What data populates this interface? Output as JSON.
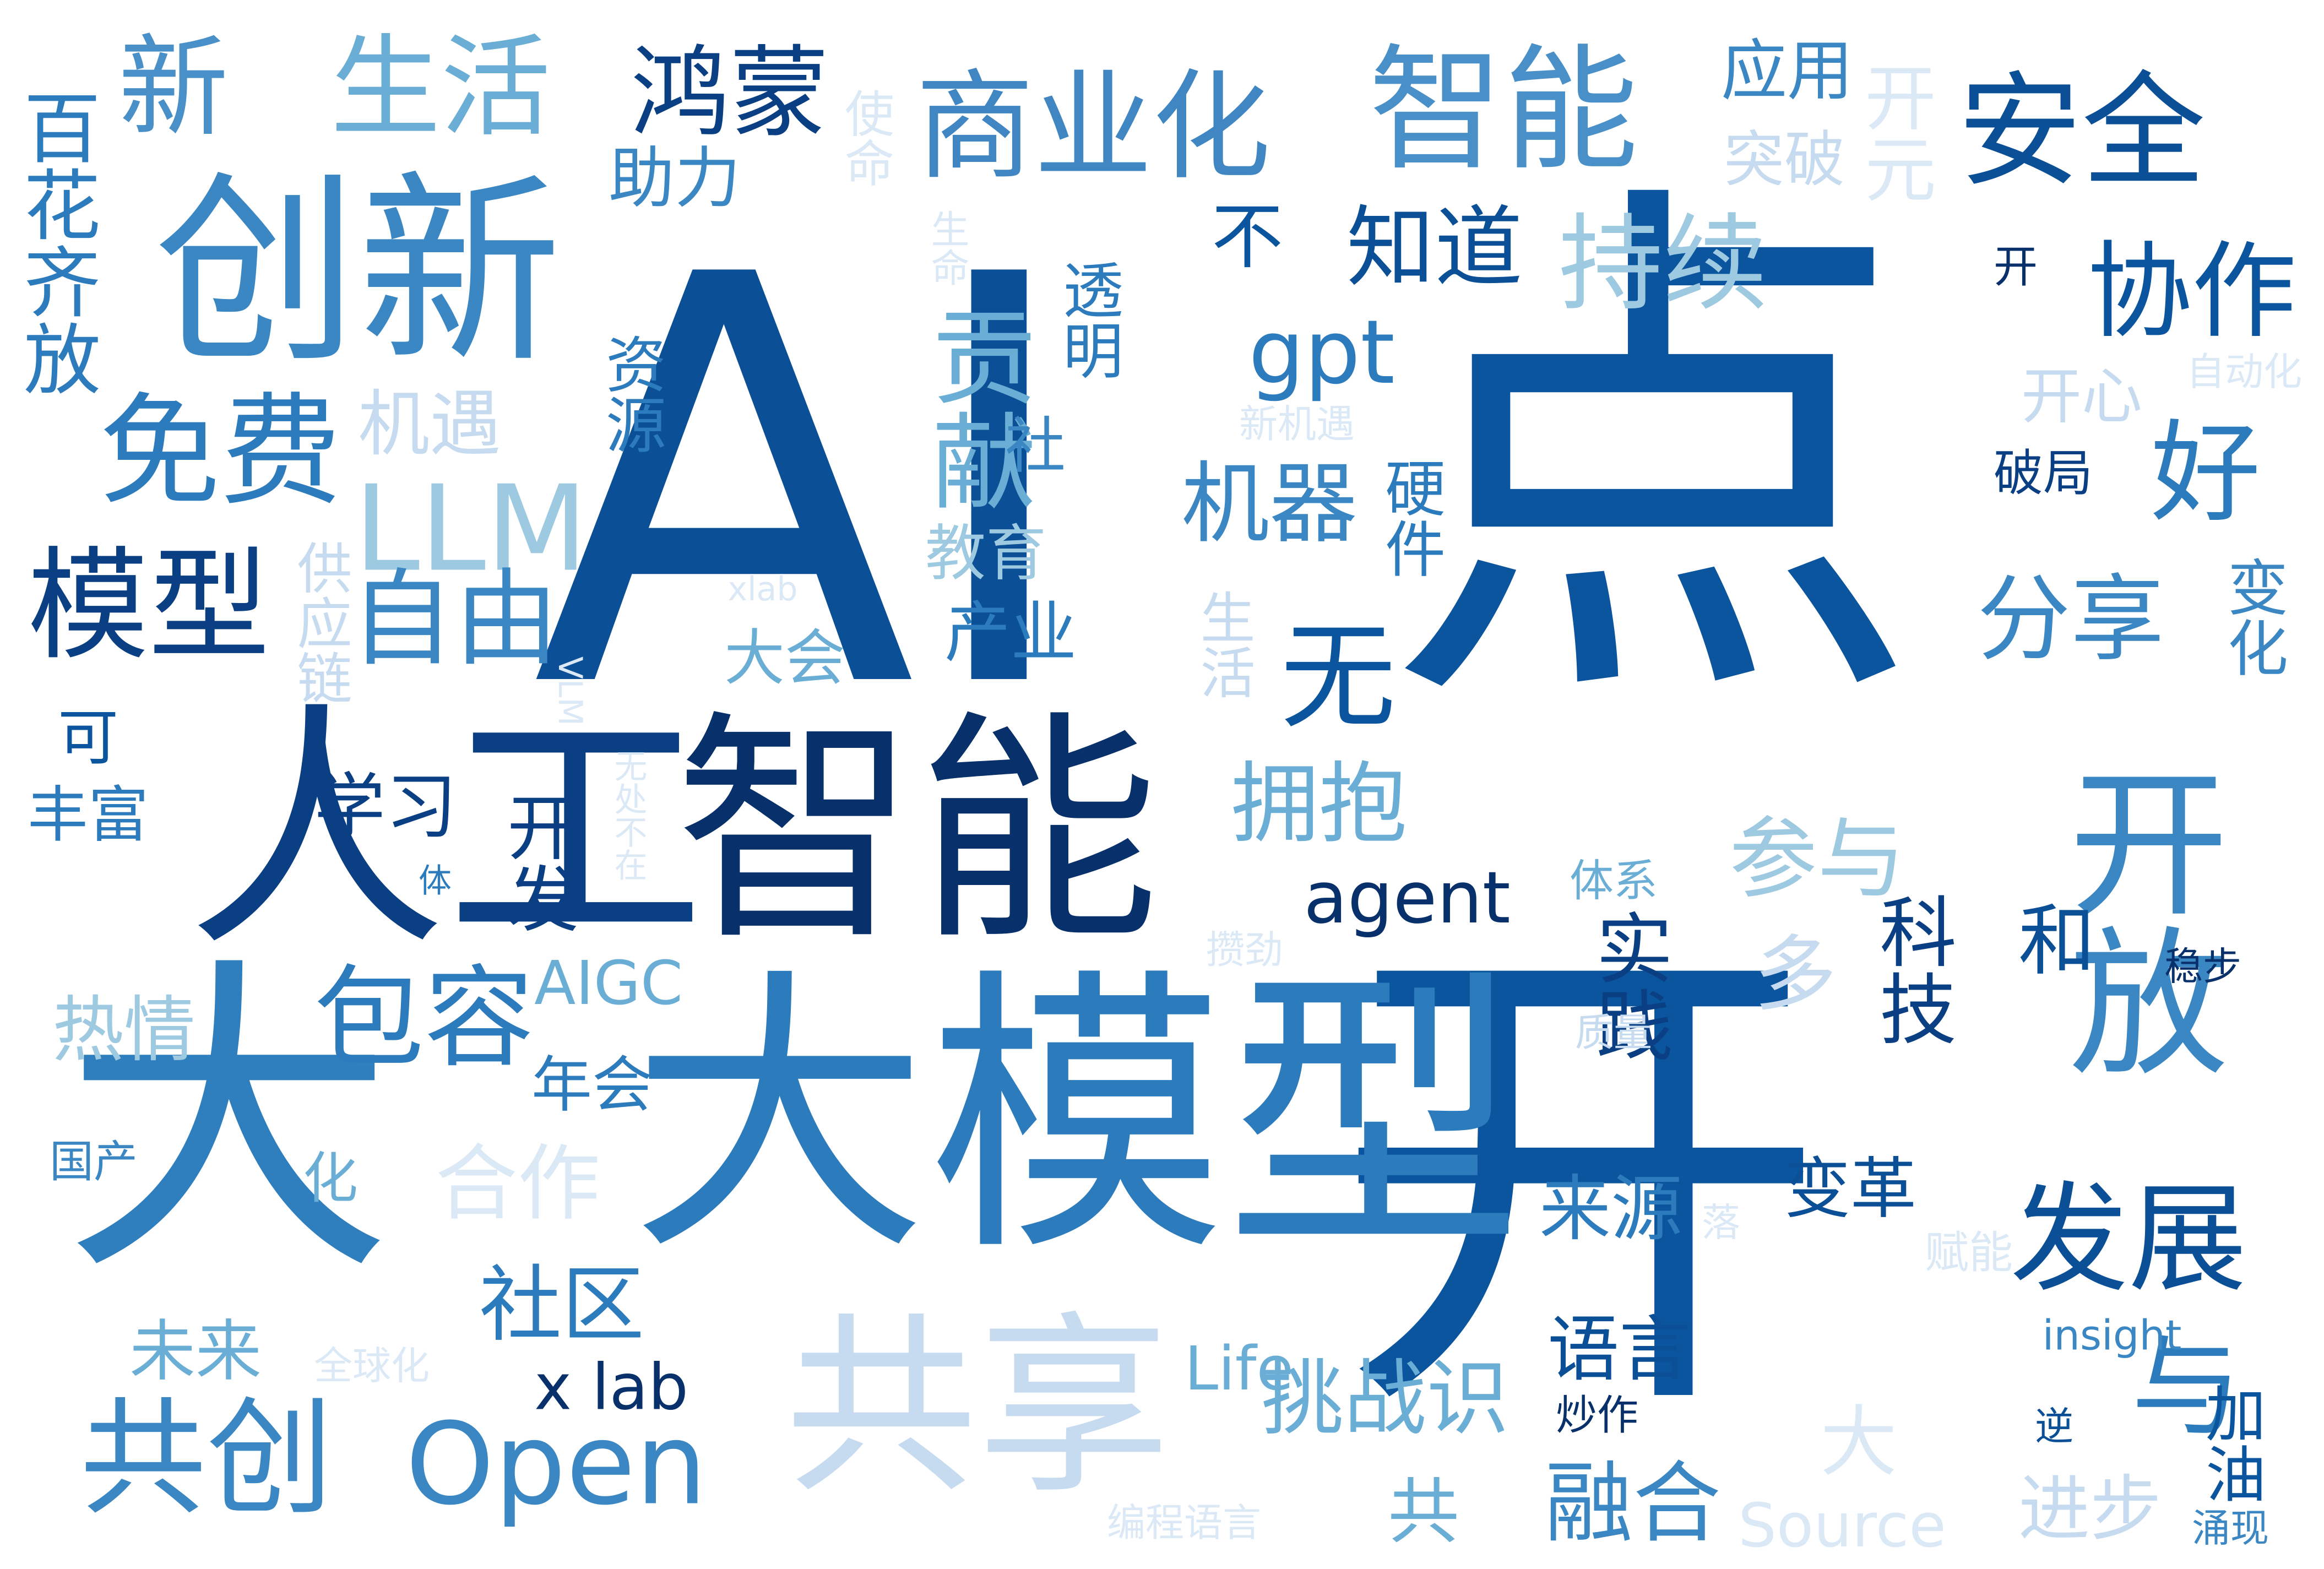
{
  "words": [
    {
      "id": "ai",
      "text": "AI",
      "color": "#0b4f96",
      "vertical": false
    },
    {
      "id": "dian",
      "text": "点",
      "color": "#0b559f",
      "vertical": false
    },
    {
      "id": "kai",
      "text": "开",
      "color": "#0b559f",
      "vertical": false
    },
    {
      "id": "damoxing",
      "text": "大模型",
      "color": "#2c7bbd",
      "vertical": false
    },
    {
      "id": "da",
      "text": "大",
      "color": "#2f7fbf",
      "vertical": false
    },
    {
      "id": "rengong",
      "text": "人工",
      "color": "#0a3f84",
      "vertical": false
    },
    {
      "id": "zhineng",
      "text": "智能",
      "color": "#08306b",
      "vertical": false
    },
    {
      "id": "gongxiang",
      "text": "共享",
      "color": "#c6dbef",
      "vertical": false
    },
    {
      "id": "chuangxin",
      "text": "创新",
      "color": "#3a87c3",
      "vertical": false
    },
    {
      "id": "kaifang",
      "text": "开放",
      "color": "#3a87c3",
      "vertical": true
    },
    {
      "id": "zhineng2",
      "text": "智能",
      "color": "#4a90c8",
      "vertical": false
    },
    {
      "id": "shangyehua",
      "text": "商业化",
      "color": "#3f86c2",
      "vertical": false
    },
    {
      "id": "anquan",
      "text": "安全",
      "color": "#0b4f96",
      "vertical": false
    },
    {
      "id": "xin",
      "text": "新",
      "color": "#4a90c8",
      "vertical": false
    },
    {
      "id": "shenghuo",
      "text": "生活",
      "color": "#6aaed6",
      "vertical": false
    },
    {
      "id": "hongmeng",
      "text": "鸿蒙",
      "color": "#0a3f84",
      "vertical": false
    },
    {
      "id": "mianfei",
      "text": "免费",
      "color": "#2c7bbd",
      "vertical": false
    },
    {
      "id": "moxing",
      "text": "模型",
      "color": "#0a3f84",
      "vertical": false
    },
    {
      "id": "llm",
      "text": "LLM",
      "color": "#9ecae1",
      "vertical": false
    },
    {
      "id": "ziyou",
      "text": "自由",
      "color": "#3a87c3",
      "vertical": false
    },
    {
      "id": "gongchuang",
      "text": "共创",
      "color": "#3a87c3",
      "vertical": false
    },
    {
      "id": "open",
      "text": "Open",
      "color": "#3a87c3",
      "vertical": false
    },
    {
      "id": "fazhan",
      "text": "发展",
      "color": "#0b4f96",
      "vertical": false
    },
    {
      "id": "yu",
      "text": "与",
      "color": "#2c7bbd",
      "vertical": false
    },
    {
      "id": "baohan",
      "text": "包容",
      "color": "#2c7bbd",
      "vertical": false
    },
    {
      "id": "wu",
      "text": "无",
      "color": "#0b559f",
      "vertical": false
    },
    {
      "id": "chixu",
      "text": "持续",
      "color": "#9ecae1",
      "vertical": false
    },
    {
      "id": "xiezuo",
      "text": "协作",
      "color": "#0b559f",
      "vertical": false
    },
    {
      "id": "hao",
      "text": "好",
      "color": "#2c7bbd",
      "vertical": false
    },
    {
      "id": "gongxian",
      "text": "贡献",
      "color": "#6aaed6",
      "vertical": true
    },
    {
      "id": "gpt",
      "text": "gpt",
      "color": "#2c7bbd",
      "vertical": false
    },
    {
      "id": "jiqi",
      "text": "机器",
      "color": "#3a87c3",
      "vertical": false
    },
    {
      "id": "zhidao",
      "text": "知道",
      "color": "#0b4f96",
      "vertical": false
    },
    {
      "id": "bu",
      "text": "不",
      "color": "#0b559f",
      "vertical": false
    },
    {
      "id": "agent",
      "text": "agent",
      "color": "#08306b",
      "vertical": false
    },
    {
      "id": "yongbao",
      "text": "拥抱",
      "color": "#6aaed6",
      "vertical": false
    },
    {
      "id": "canyu",
      "text": "参与",
      "color": "#9ecae1",
      "vertical": false
    },
    {
      "id": "fenxiang",
      "text": "分享",
      "color": "#3a87c3",
      "vertical": false
    },
    {
      "id": "he",
      "text": "和",
      "color": "#0b4f96",
      "vertical": false
    },
    {
      "id": "duo",
      "text": "多",
      "color": "#c6dbef",
      "vertical": false
    },
    {
      "id": "keji",
      "text": "科技",
      "color": "#0a3f84",
      "vertical": true
    },
    {
      "id": "shijian",
      "text": "实践",
      "color": "#0a3f84",
      "vertical": true
    },
    {
      "id": "baihuaqifang",
      "text": "百花齐放",
      "color": "#2c7bbd",
      "vertical": true
    },
    {
      "id": "xuexi",
      "text": "学习",
      "color": "#0a3f84",
      "vertical": false
    },
    {
      "id": "kaifa",
      "text": "开发",
      "color": "#0a3f84",
      "vertical": true
    },
    {
      "id": "aigc",
      "text": "AIGC",
      "color": "#6aaed6",
      "vertical": false
    },
    {
      "id": "nianhui",
      "text": "年会",
      "color": "#2c7bbd",
      "vertical": false
    },
    {
      "id": "reqing",
      "text": "热情",
      "color": "#9ecae1",
      "vertical": false
    },
    {
      "id": "hezuo",
      "text": "合作",
      "color": "#dbe9f6",
      "vertical": false
    },
    {
      "id": "shequ",
      "text": "社区",
      "color": "#2c7bbd",
      "vertical": false
    },
    {
      "id": "weilai",
      "text": "未来",
      "color": "#6aaed6",
      "vertical": false
    },
    {
      "id": "xlab",
      "text": "x lab",
      "color": "#08306b",
      "vertical": false
    },
    {
      "id": "life",
      "text": "Life",
      "color": "#6aaed6",
      "vertical": false
    },
    {
      "id": "tiaozhanshi",
      "text": "挑战识",
      "color": "#6aaed6",
      "vertical": false
    },
    {
      "id": "yuyan",
      "text": "语言",
      "color": "#0b4f96",
      "vertical": false
    },
    {
      "id": "laiyuan",
      "text": "来源",
      "color": "#2c7bbd",
      "vertical": false
    },
    {
      "id": "biange",
      "text": "变革",
      "color": "#0b4f96",
      "vertical": false
    },
    {
      "id": "ronghe",
      "text": "融合",
      "color": "#3a87c3",
      "vertical": false
    },
    {
      "id": "gong",
      "text": "共",
      "color": "#6aaed6",
      "vertical": false
    },
    {
      "id": "source",
      "text": "Source",
      "color": "#dbe9f6",
      "vertical": false
    },
    {
      "id": "jinbu",
      "text": "进步",
      "color": "#c6dbef",
      "vertical": false
    },
    {
      "id": "dajiang",
      "text": "大",
      "color": "#dbe9f6",
      "vertical": false
    },
    {
      "id": "insight",
      "text": "insight",
      "color": "#3a87c3",
      "vertical": false
    },
    {
      "id": "jiayou",
      "text": "加油",
      "color": "#0b559f",
      "vertical": true
    },
    {
      "id": "yongxian",
      "text": "涌现",
      "color": "#3a87c3",
      "vertical": false
    },
    {
      "id": "chaozuo",
      "text": "炒作",
      "color": "#08306b",
      "vertical": false
    },
    {
      "id": "ni",
      "text": "逆",
      "color": "#0b4f96",
      "vertical": false
    },
    {
      "id": "fuzneng",
      "text": "赋能",
      "color": "#dbe9f6",
      "vertical": false
    },
    {
      "id": "wenbu",
      "text": "稳步",
      "color": "#08306b",
      "vertical": false
    },
    {
      "id": "zhiliang",
      "text": "质量",
      "color": "#c6dbef",
      "vertical": false
    },
    {
      "id": "tixi",
      "text": "体系",
      "color": "#6aaed6",
      "vertical": false
    },
    {
      "id": "zanjin",
      "text": "攒劲",
      "color": "#dbe9f6",
      "vertical": false
    },
    {
      "id": "bianhua",
      "text": "变化",
      "color": "#3a87c3",
      "vertical": true
    },
    {
      "id": "kaixin",
      "text": "开心",
      "color": "#c6dbef",
      "vertical": false
    },
    {
      "id": "zidonghua",
      "text": "自动化",
      "color": "#dbe9f6",
      "vertical": false
    },
    {
      "id": "pojv",
      "text": "破局",
      "color": "#0a3f84",
      "vertical": false
    },
    {
      "id": "kai2",
      "text": "开",
      "color": "#08306b",
      "vertical": false
    },
    {
      "id": "xinjiyu",
      "text": "新机遇",
      "color": "#dbe9f6",
      "vertical": false
    },
    {
      "id": "kaiyuan",
      "text": "开元",
      "color": "#dbe9f6",
      "vertical": true
    },
    {
      "id": "tupo",
      "text": "突破",
      "color": "#c6dbef",
      "vertical": false
    },
    {
      "id": "yingyong",
      "text": "应用",
      "color": "#3a87c3",
      "vertical": false
    },
    {
      "id": "shengming",
      "text": "生命",
      "color": "#dbe9f6",
      "vertical": true
    },
    {
      "id": "shiming",
      "text": "使命",
      "color": "#dbe9f6",
      "vertical": true
    },
    {
      "id": "zhuli",
      "text": "助力",
      "color": "#3a87c3",
      "vertical": false
    },
    {
      "id": "touming",
      "text": "透明",
      "color": "#2c7bbd",
      "vertical": true
    },
    {
      "id": "ziyuan",
      "text": "资源",
      "color": "#2c7bbd",
      "vertical": true
    },
    {
      "id": "jiyu",
      "text": "机遇",
      "color": "#c6dbef",
      "vertical": false
    },
    {
      "id": "she",
      "text": "社",
      "color": "#3a87c3",
      "vertical": false
    },
    {
      "id": "yingjian",
      "text": "硬件",
      "color": "#2c7bbd",
      "vertical": true
    },
    {
      "id": "jiaoyu",
      "text": "教育",
      "color": "#9ecae1",
      "vertical": false
    },
    {
      "id": "shenghuo2",
      "text": "生活",
      "color": "#c6dbef",
      "vertical": true
    },
    {
      "id": "chanye",
      "text": "产业",
      "color": "#2c7bbd",
      "vertical": false
    },
    {
      "id": "dahui",
      "text": "大会",
      "color": "#6aaed6",
      "vertical": false
    },
    {
      "id": "xlab2",
      "text": "xlab",
      "color": "#dbe9f6",
      "vertical": false
    },
    {
      "id": "gongyinglian",
      "text": "供应链",
      "color": "#c6dbef",
      "vertical": true
    },
    {
      "id": "vlm",
      "text": "VLM",
      "color": "#dbe9f6",
      "vertical": true
    },
    {
      "id": "wuchubuzai",
      "text": "无处不在",
      "color": "#dbe9f6",
      "vertical": true
    },
    {
      "id": "ke",
      "text": "可",
      "color": "#0b559f",
      "vertical": false
    },
    {
      "id": "fengfu",
      "text": "丰富",
      "color": "#2c7bbd",
      "vertical": false
    },
    {
      "id": "ti",
      "text": "体",
      "color": "#2c7bbd",
      "vertical": false
    },
    {
      "id": "guochan",
      "text": "国产",
      "color": "#3a87c3",
      "vertical": false
    },
    {
      "id": "hua",
      "text": "化",
      "color": "#6aaed6",
      "vertical": false
    },
    {
      "id": "quanqiuhua",
      "text": "全球化",
      "color": "#dbe9f6",
      "vertical": false
    },
    {
      "id": "bianchengyuyan",
      "text": "编程语言",
      "color": "#dbe9f6",
      "vertical": false
    },
    {
      "id": "luo",
      "text": "落",
      "color": "#dbe9f6",
      "vertical": false
    }
  ]
}
